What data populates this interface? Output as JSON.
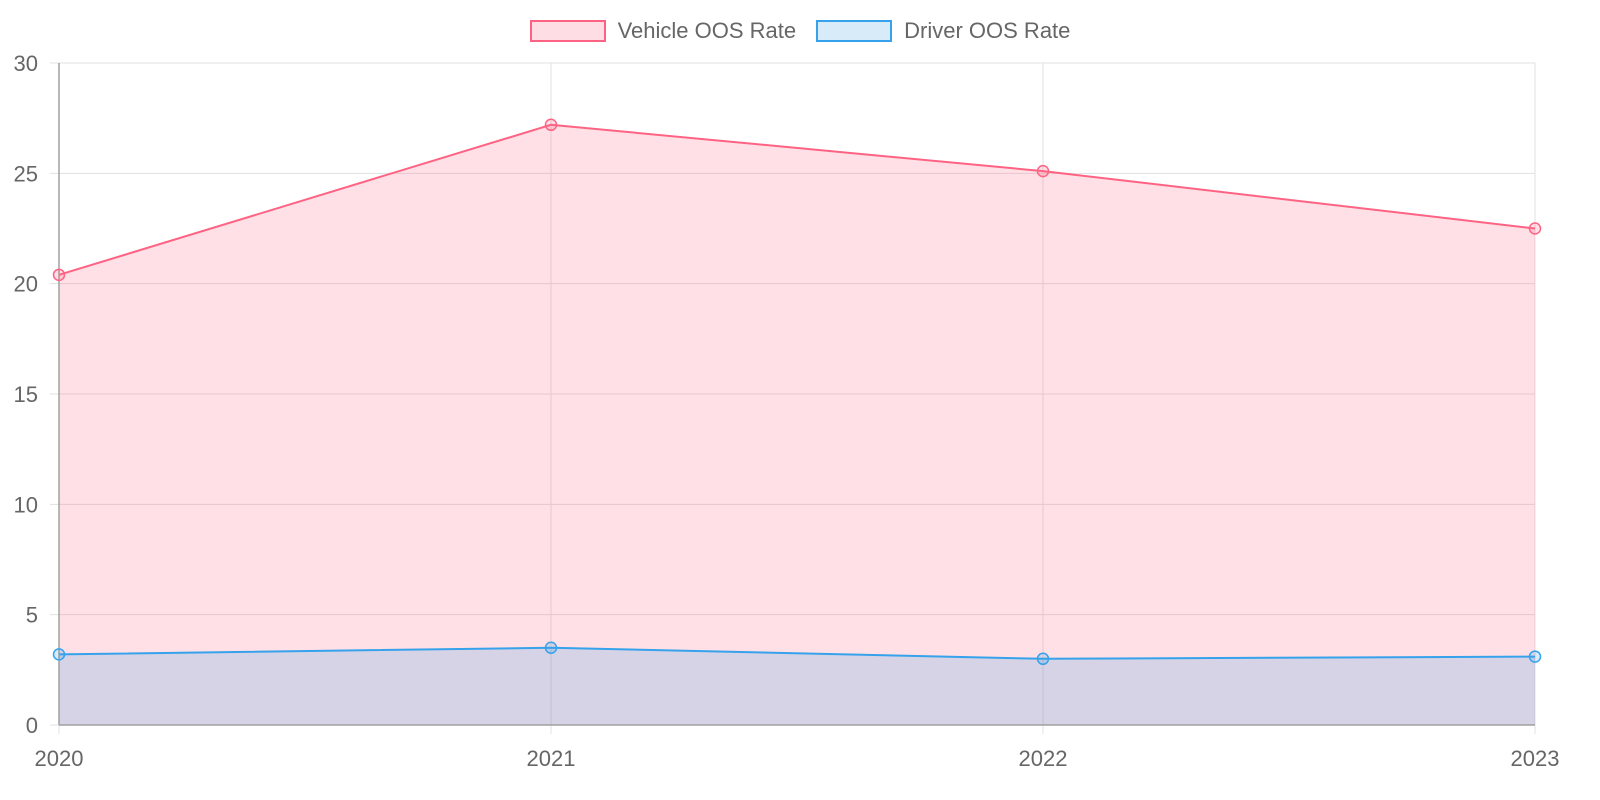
{
  "legend": {
    "items": [
      {
        "label": "Vehicle OOS Rate",
        "border": "#ff6384",
        "fill": "#ffdde4"
      },
      {
        "label": "Driver OOS Rate",
        "border": "#36a2eb",
        "fill": "#d7ebf9"
      }
    ]
  },
  "chart_data": {
    "type": "area",
    "title": "",
    "xlabel": "",
    "ylabel": "",
    "categories": [
      "2020",
      "2021",
      "2022",
      "2023"
    ],
    "series": [
      {
        "name": "Vehicle OOS Rate",
        "values": [
          20.4,
          27.2,
          25.1,
          22.5
        ],
        "color": "#ff6384",
        "fill": "rgba(255,99,132,0.2)"
      },
      {
        "name": "Driver OOS Rate",
        "values": [
          3.2,
          3.5,
          3.0,
          3.1
        ],
        "color": "#36a2eb",
        "fill": "rgba(54,162,235,0.2)"
      }
    ],
    "ylim": [
      0,
      30
    ],
    "yticks": [
      0,
      5,
      10,
      15,
      20,
      25,
      30
    ],
    "grid": true,
    "legend_position": "top"
  }
}
